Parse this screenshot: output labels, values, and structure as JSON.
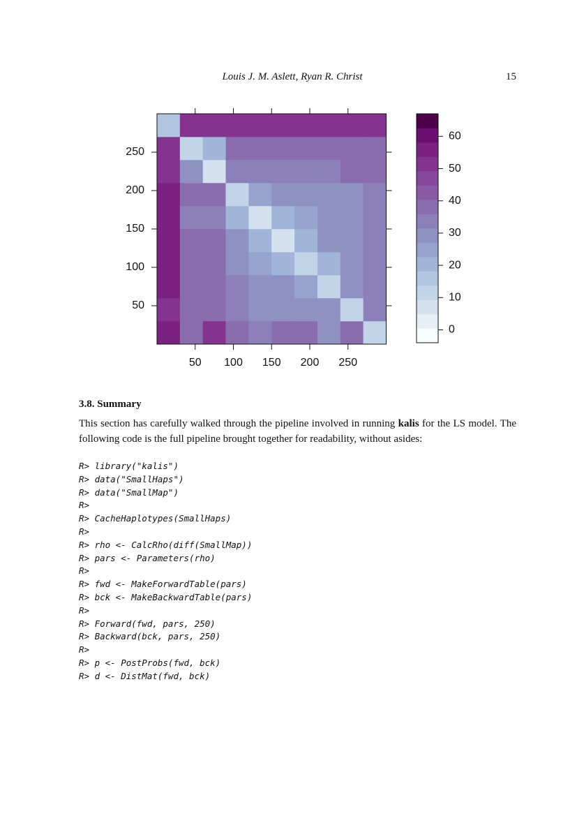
{
  "header": {
    "authors": "Louis J. M. Aslett, Ryan R. Christ",
    "page": "15"
  },
  "chart_data": {
    "type": "heatmap",
    "xlim": [
      0,
      300
    ],
    "xticks": [
      50,
      100,
      150,
      200,
      250
    ],
    "ylim": [
      0,
      300
    ],
    "yticks": [
      50,
      100,
      150,
      200,
      250
    ],
    "z": [
      [
        55,
        40,
        50,
        40,
        35,
        38,
        38,
        30,
        38,
        10
      ],
      [
        52,
        38,
        38,
        32,
        28,
        30,
        30,
        28,
        12,
        35
      ],
      [
        55,
        38,
        38,
        33,
        30,
        30,
        25,
        12,
        28,
        35
      ],
      [
        55,
        38,
        38,
        30,
        25,
        20,
        10,
        22,
        30,
        35
      ],
      [
        55,
        38,
        38,
        28,
        20,
        8,
        20,
        28,
        30,
        35
      ],
      [
        55,
        35,
        35,
        20,
        8,
        20,
        25,
        30,
        30,
        32
      ],
      [
        55,
        38,
        38,
        10,
        25,
        28,
        30,
        30,
        30,
        32
      ],
      [
        52,
        30,
        8,
        35,
        35,
        35,
        35,
        35,
        38,
        38
      ],
      [
        52,
        10,
        20,
        38,
        38,
        38,
        38,
        38,
        40,
        40
      ],
      [
        15,
        50,
        50,
        50,
        50,
        50,
        50,
        50,
        50,
        50
      ]
    ],
    "colorbar": {
      "lim": [
        -4,
        67
      ],
      "ticks": [
        0,
        10,
        20,
        30,
        40,
        50,
        60
      ],
      "colors": [
        "#f7fcfd",
        "#e6eef6",
        "#d4e1ef",
        "#c2d4e8",
        "#b0c6e0",
        "#a0b5d7",
        "#96a3cd",
        "#8f91c3",
        "#8b80b9",
        "#8a6daf",
        "#8a5aa5",
        "#87479b",
        "#84338f",
        "#7a2181",
        "#6a0f6f",
        "#4d004b"
      ]
    }
  },
  "section": {
    "title": "3.8. Summary",
    "paragraph": [
      "This section has carefully walked through the pipeline involved in running ",
      "kalis",
      " for the LS model. The following code is the full pipeline brought together for readability, without asides:"
    ],
    "code": [
      "R> library(\"kalis\")",
      "R> data(\"SmallHaps\")",
      "R> data(\"SmallMap\")",
      "R>",
      "R> CacheHaplotypes(SmallHaps)",
      "R>",
      "R> rho <- CalcRho(diff(SmallMap))",
      "R> pars <- Parameters(rho)",
      "R>",
      "R> fwd <- MakeForwardTable(pars)",
      "R> bck <- MakeBackwardTable(pars)",
      "R>",
      "R> Forward(fwd, pars, 250)",
      "R> Backward(bck, pars, 250)",
      "R>",
      "R> p <- PostProbs(fwd, bck)",
      "R> d <- DistMat(fwd, bck)"
    ]
  }
}
